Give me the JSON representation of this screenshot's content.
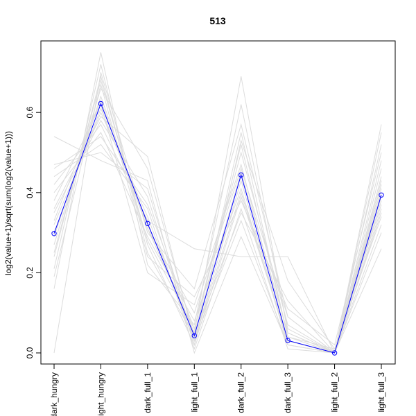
{
  "chart_data": {
    "type": "line",
    "title": "513",
    "xlabel": "",
    "ylabel": "log2(value+1)/sqrt(sum(log2(value+1)))",
    "ylim": [
      0,
      0.75
    ],
    "yticks": [
      "0.0",
      "0.2",
      "0.4",
      "0.6"
    ],
    "categories": [
      "dark_hungry",
      "light_hungry",
      "dark_full_1",
      "light_full_1",
      "dark_full_2",
      "dark_full_3",
      "light_full_2",
      "light_full_3"
    ],
    "colors": {
      "highlight": "#0000ff",
      "background": "#dcdcdc"
    },
    "highlight_series": {
      "values": [
        0.298,
        0.622,
        0.323,
        0.043,
        0.444,
        0.031,
        0.0,
        0.394
      ]
    },
    "background_series": [
      {
        "values": [
          0.29,
          0.64,
          0.31,
          0.05,
          0.45,
          0.05,
          0.0,
          0.4
        ]
      },
      {
        "values": [
          0.32,
          0.6,
          0.34,
          0.03,
          0.43,
          0.02,
          0.0,
          0.41
        ]
      },
      {
        "values": [
          0.25,
          0.68,
          0.28,
          0.06,
          0.5,
          0.07,
          0.0,
          0.36
        ]
      },
      {
        "values": [
          0.35,
          0.58,
          0.39,
          0.02,
          0.39,
          0.03,
          0.0,
          0.44
        ]
      },
      {
        "values": [
          0.4,
          0.55,
          0.29,
          0.08,
          0.41,
          0.02,
          0.0,
          0.38
        ]
      },
      {
        "values": [
          0.21,
          0.72,
          0.25,
          0.04,
          0.55,
          0.04,
          0.01,
          0.34
        ]
      },
      {
        "values": [
          0.44,
          0.52,
          0.36,
          0.01,
          0.36,
          0.01,
          0.0,
          0.46
        ]
      },
      {
        "values": [
          0.16,
          0.75,
          0.22,
          0.07,
          0.62,
          0.06,
          0.0,
          0.3
        ]
      },
      {
        "values": [
          0.47,
          0.5,
          0.41,
          0.03,
          0.33,
          0.02,
          0.0,
          0.48
        ]
      },
      {
        "values": [
          0.54,
          0.48,
          0.43,
          0.0,
          0.29,
          0.02,
          0.0,
          0.52
        ]
      },
      {
        "values": [
          0.0,
          0.7,
          0.3,
          0.16,
          0.57,
          0.09,
          0.0,
          0.55
        ]
      },
      {
        "values": [
          0.38,
          0.62,
          0.2,
          0.12,
          0.47,
          0.03,
          0.0,
          0.42
        ]
      },
      {
        "values": [
          0.27,
          0.66,
          0.46,
          0.04,
          0.35,
          0.13,
          0.0,
          0.32
        ]
      },
      {
        "values": [
          0.42,
          0.57,
          0.33,
          0.26,
          0.24,
          0.24,
          0.0,
          0.39
        ]
      },
      {
        "values": [
          0.3,
          0.61,
          0.32,
          0.05,
          0.69,
          0.05,
          0.0,
          0.26
        ]
      },
      {
        "values": [
          0.24,
          0.69,
          0.27,
          0.02,
          0.53,
          0.18,
          0.01,
          0.37
        ]
      },
      {
        "values": [
          0.36,
          0.59,
          0.49,
          0.03,
          0.4,
          0.03,
          0.0,
          0.57
        ]
      },
      {
        "values": [
          0.33,
          0.63,
          0.31,
          0.1,
          0.46,
          0.09,
          0.0,
          0.35
        ]
      },
      {
        "values": [
          0.46,
          0.54,
          0.37,
          0.06,
          0.52,
          0.04,
          0.0,
          0.43
        ]
      },
      {
        "values": [
          0.19,
          0.67,
          0.24,
          0.14,
          0.38,
          0.11,
          0.02,
          0.5
        ]
      }
    ]
  }
}
